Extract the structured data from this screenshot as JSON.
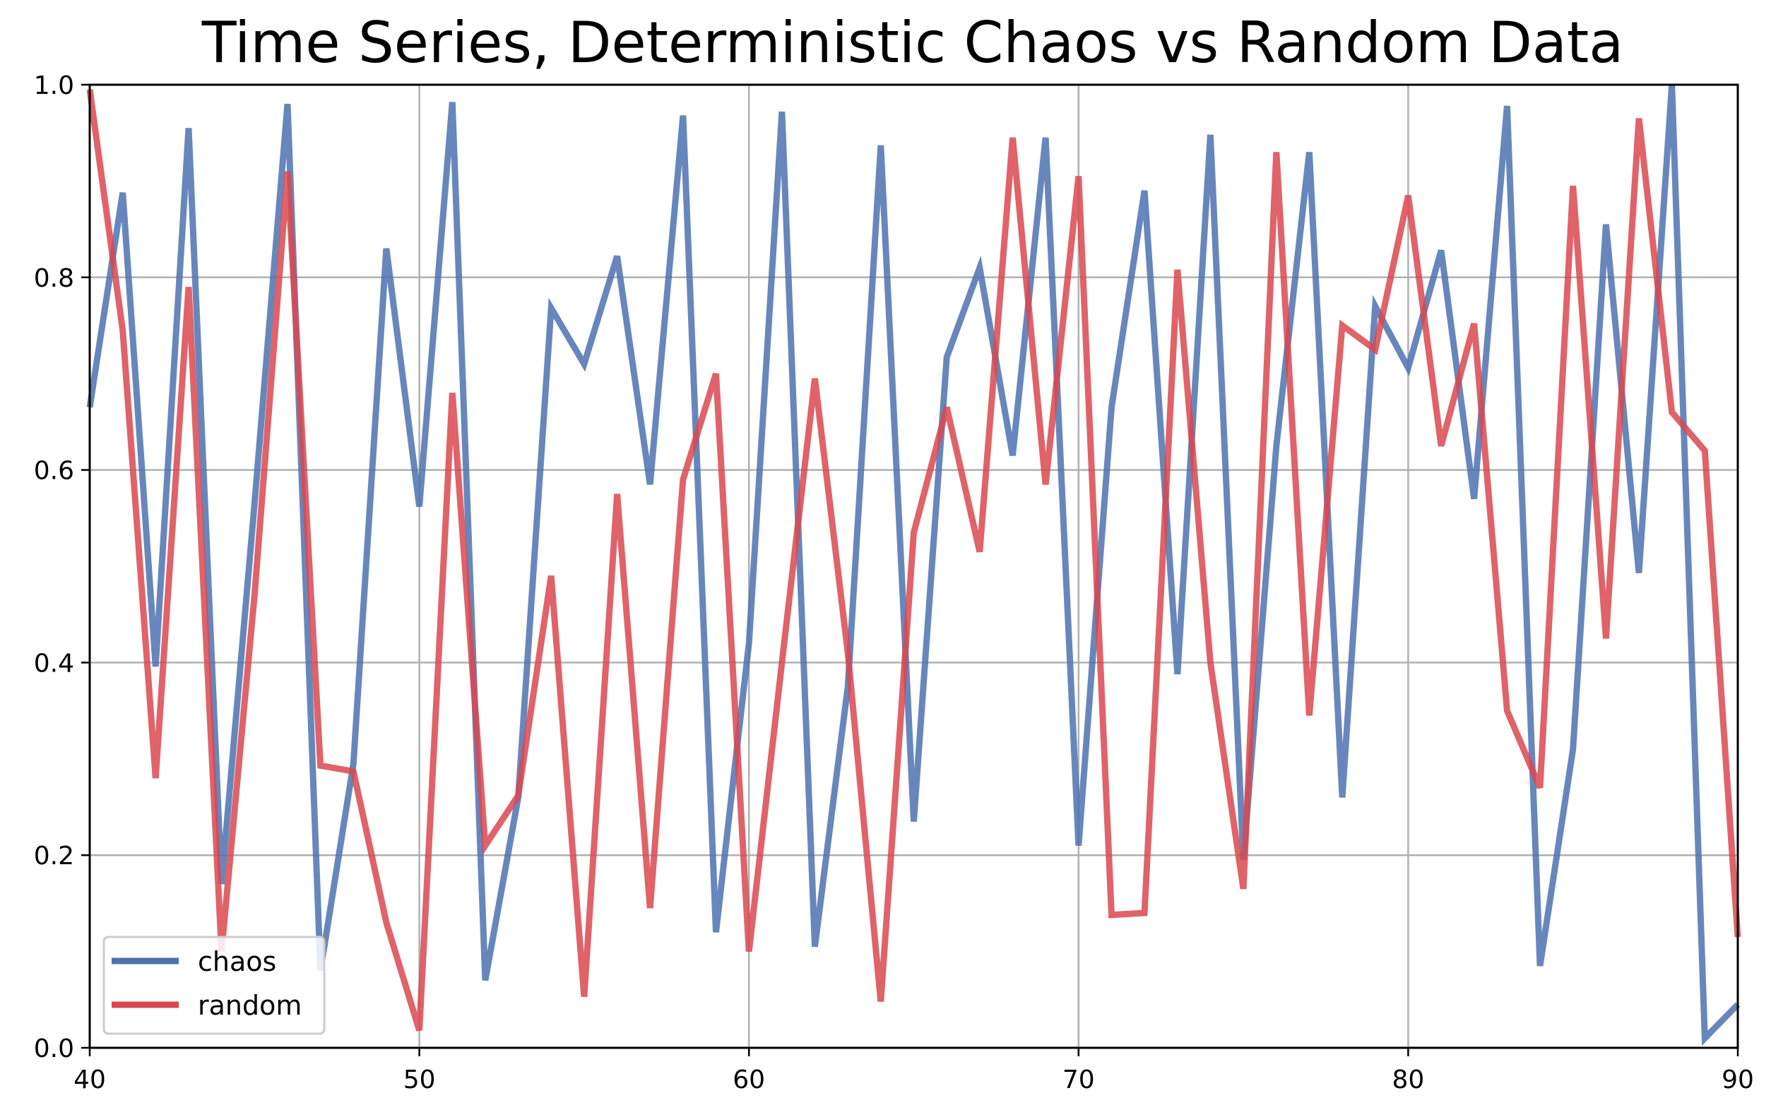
{
  "chart_data": {
    "type": "line",
    "title": "Time Series, Deterministic Chaos vs Random Data",
    "xlabel": "",
    "ylabel": "",
    "xlim": [
      40,
      90
    ],
    "ylim": [
      0.0,
      1.0
    ],
    "grid": true,
    "legend_position": "lower-left",
    "x_ticks": [
      "40",
      "50",
      "60",
      "70",
      "80",
      "90"
    ],
    "y_ticks": [
      "0.0",
      "0.2",
      "0.4",
      "0.6",
      "0.8",
      "1.0"
    ],
    "x": [
      40,
      41,
      42,
      43,
      44,
      45,
      46,
      47,
      48,
      49,
      50,
      51,
      52,
      53,
      54,
      55,
      56,
      57,
      58,
      59,
      60,
      61,
      62,
      63,
      64,
      65,
      66,
      67,
      68,
      69,
      70,
      71,
      72,
      73,
      74,
      75,
      76,
      77,
      78,
      79,
      80,
      81,
      82,
      83,
      84,
      85,
      86,
      87,
      88,
      89,
      90
    ],
    "series": [
      {
        "name": "chaos",
        "color": "#4c72b0",
        "values": [
          0.665,
          0.888,
          0.396,
          0.955,
          0.17,
          0.565,
          0.98,
          0.08,
          0.295,
          0.83,
          0.562,
          0.982,
          0.07,
          0.26,
          0.768,
          0.71,
          0.822,
          0.585,
          0.968,
          0.12,
          0.42,
          0.972,
          0.105,
          0.375,
          0.937,
          0.235,
          0.717,
          0.81,
          0.615,
          0.945,
          0.21,
          0.665,
          0.89,
          0.388,
          0.948,
          0.195,
          0.625,
          0.93,
          0.26,
          0.77,
          0.706,
          0.828,
          0.57,
          0.978,
          0.085,
          0.31,
          0.855,
          0.493,
          1.0,
          0.01,
          0.045
        ]
      },
      {
        "name": "random",
        "color": "#d9484f",
        "values": [
          0.995,
          0.745,
          0.28,
          0.79,
          0.1,
          0.47,
          0.91,
          0.293,
          0.287,
          0.13,
          0.018,
          0.68,
          0.21,
          0.262,
          0.49,
          0.053,
          0.575,
          0.145,
          0.59,
          0.7,
          0.1,
          0.4,
          0.695,
          0.41,
          0.048,
          0.535,
          0.665,
          0.515,
          0.945,
          0.585,
          0.905,
          0.138,
          0.14,
          0.808,
          0.4,
          0.165,
          0.93,
          0.345,
          0.75,
          0.725,
          0.885,
          0.625,
          0.752,
          0.35,
          0.27,
          0.895,
          0.425,
          0.965,
          0.66,
          0.62,
          0.115
        ]
      }
    ]
  }
}
